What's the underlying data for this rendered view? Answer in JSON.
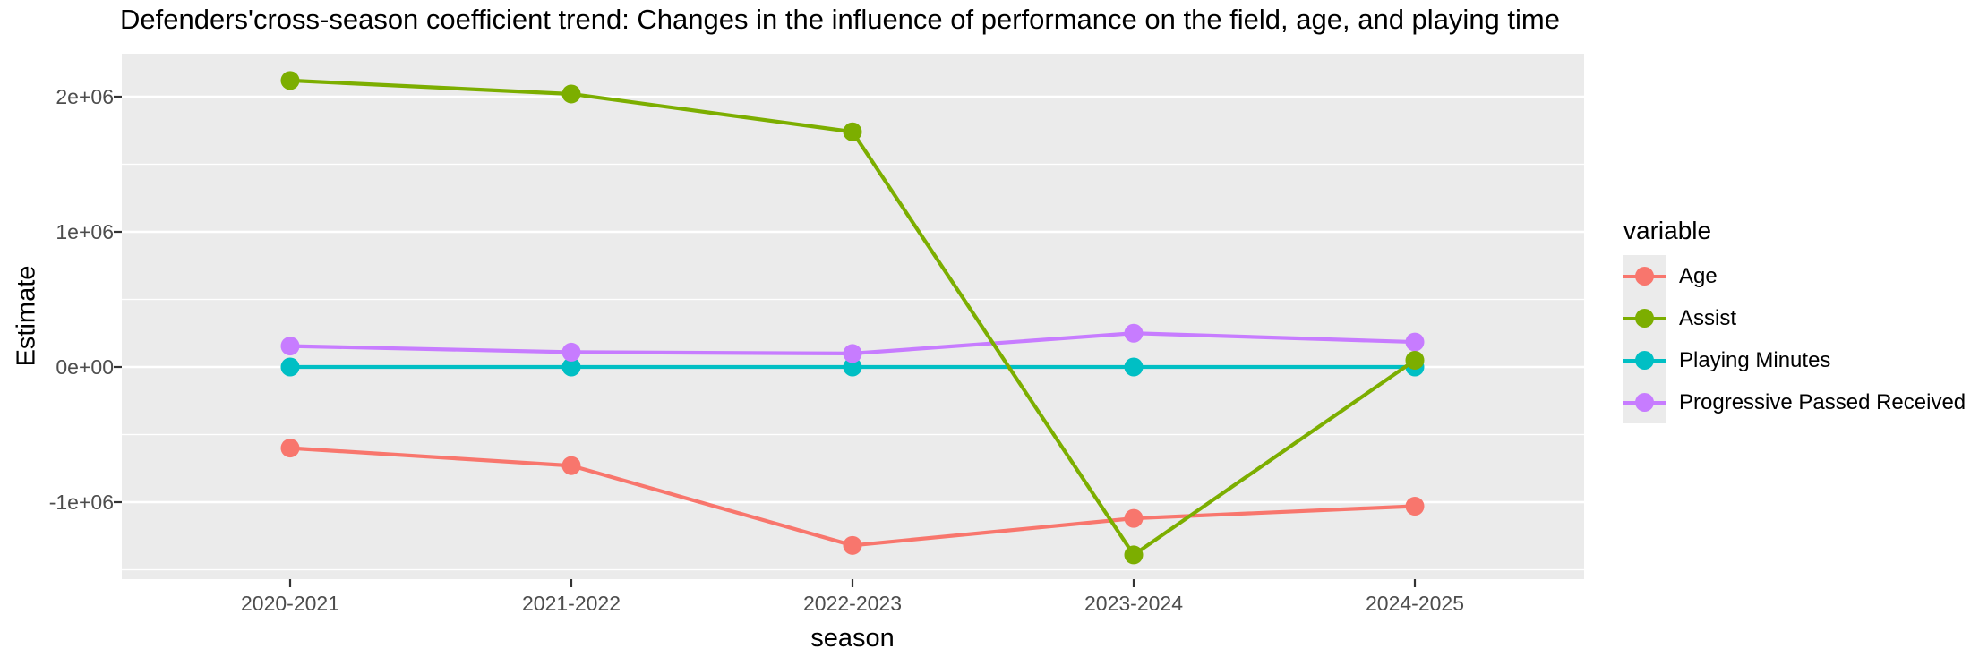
{
  "chart_data": {
    "type": "line",
    "title": "Defenders'cross-season coefficient trend: Changes in the influence of performance on the field, age, and playing time",
    "xlabel": "season",
    "ylabel": "Estimate",
    "categories": [
      "2020-2021",
      "2021-2022",
      "2022-2023",
      "2023-2024",
      "2024-2025"
    ],
    "series": [
      {
        "name": "Age",
        "color": "#F8766D",
        "values": [
          -600000,
          -730000,
          -1320000,
          -1120000,
          -1030000
        ]
      },
      {
        "name": "Assist",
        "color": "#7CAE00",
        "values": [
          2120000,
          2020000,
          1740000,
          -1390000,
          50000
        ]
      },
      {
        "name": "Playing Minutes",
        "color": "#00BFC4",
        "values": [
          0,
          0,
          0,
          0,
          0
        ]
      },
      {
        "name": "Progressive Passed Received",
        "color": "#C77CFF",
        "values": [
          155000,
          110000,
          100000,
          250000,
          185000
        ]
      }
    ],
    "y_ticks": [
      {
        "label": "2e+06",
        "value": 2000000
      },
      {
        "label": "1e+06",
        "value": 1000000
      },
      {
        "label": "0e+00",
        "value": 0
      },
      {
        "label": "-1e+06",
        "value": -1000000
      }
    ],
    "minor_ticks": [
      1500000,
      500000,
      -500000,
      -1500000
    ],
    "ylim": [
      -1570000,
      2320000
    ],
    "grid": true,
    "legend": {
      "title": "variable",
      "position": "right"
    },
    "colors": {
      "panel_bg": "#EBEBEB",
      "gridline": "#FFFFFF",
      "tick_label": "#4D4D4D",
      "axis_tick": "#333333",
      "text": "#000000"
    }
  }
}
